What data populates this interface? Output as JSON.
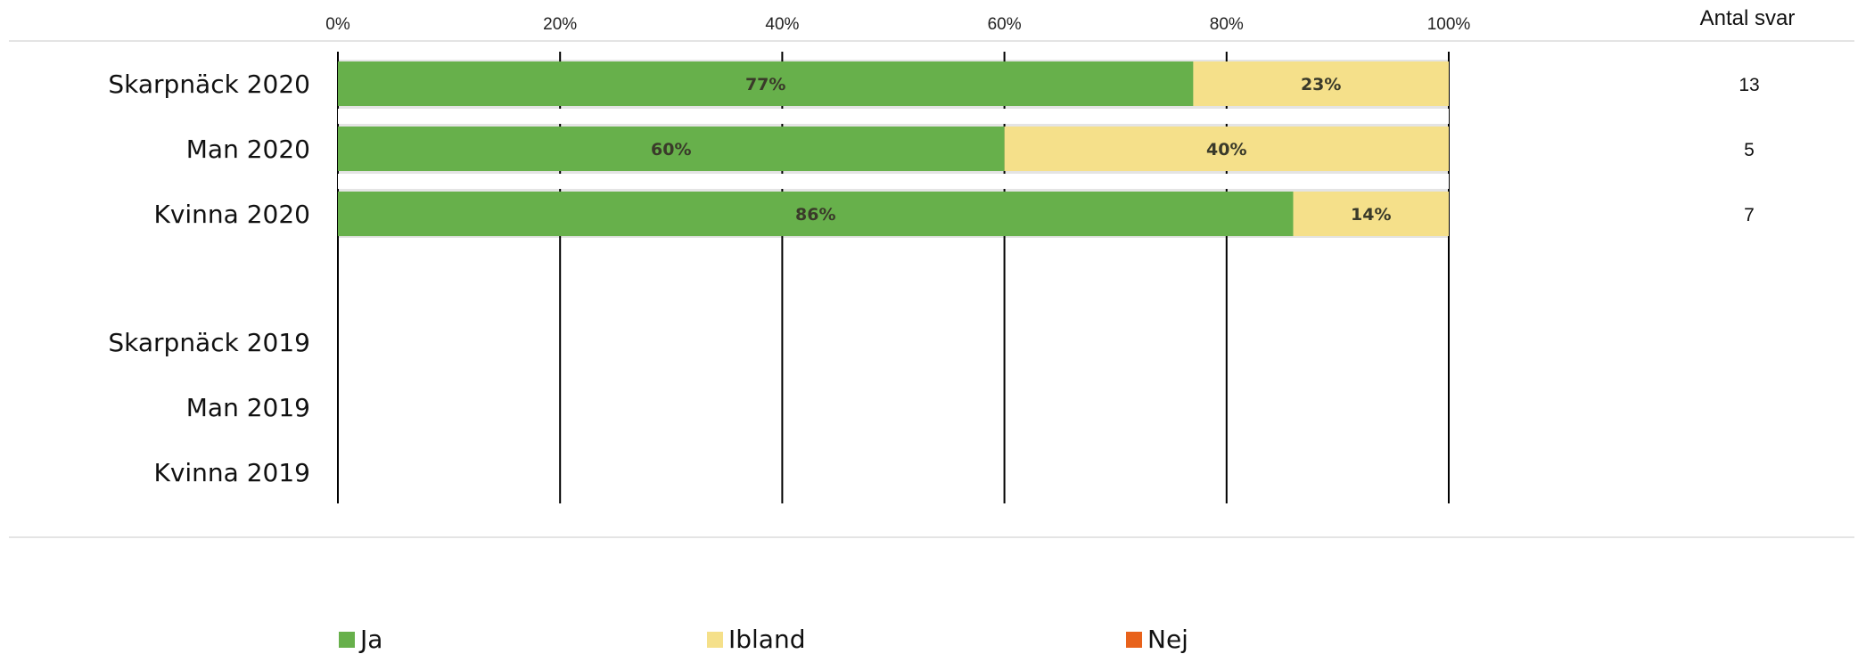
{
  "chart_data": {
    "type": "bar",
    "orientation": "horizontal",
    "stacked": true,
    "categories": [
      "Skarpnäck 2020",
      "Man 2020",
      "Kvinna 2020",
      "Skarpnäck 2019",
      "Man 2019",
      "Kvinna 2019"
    ],
    "series": [
      {
        "name": "Ja",
        "color": "#67b04b",
        "values": [
          77,
          60,
          86,
          null,
          null,
          null
        ]
      },
      {
        "name": "Ibland",
        "color": "#f5e08a",
        "values": [
          23,
          40,
          14,
          null,
          null,
          null
        ]
      },
      {
        "name": "Nej",
        "color": "#e8621b",
        "values": [
          0,
          0,
          0,
          null,
          null,
          null
        ]
      }
    ],
    "xlim": [
      0,
      100
    ],
    "xticks": [
      "0%",
      "20%",
      "40%",
      "60%",
      "80%",
      "100%"
    ],
    "grid": true,
    "legend_position": "bottom",
    "counts_header": "Antal svar",
    "counts": [
      "13",
      "5",
      "7",
      "",
      "",
      ""
    ]
  }
}
